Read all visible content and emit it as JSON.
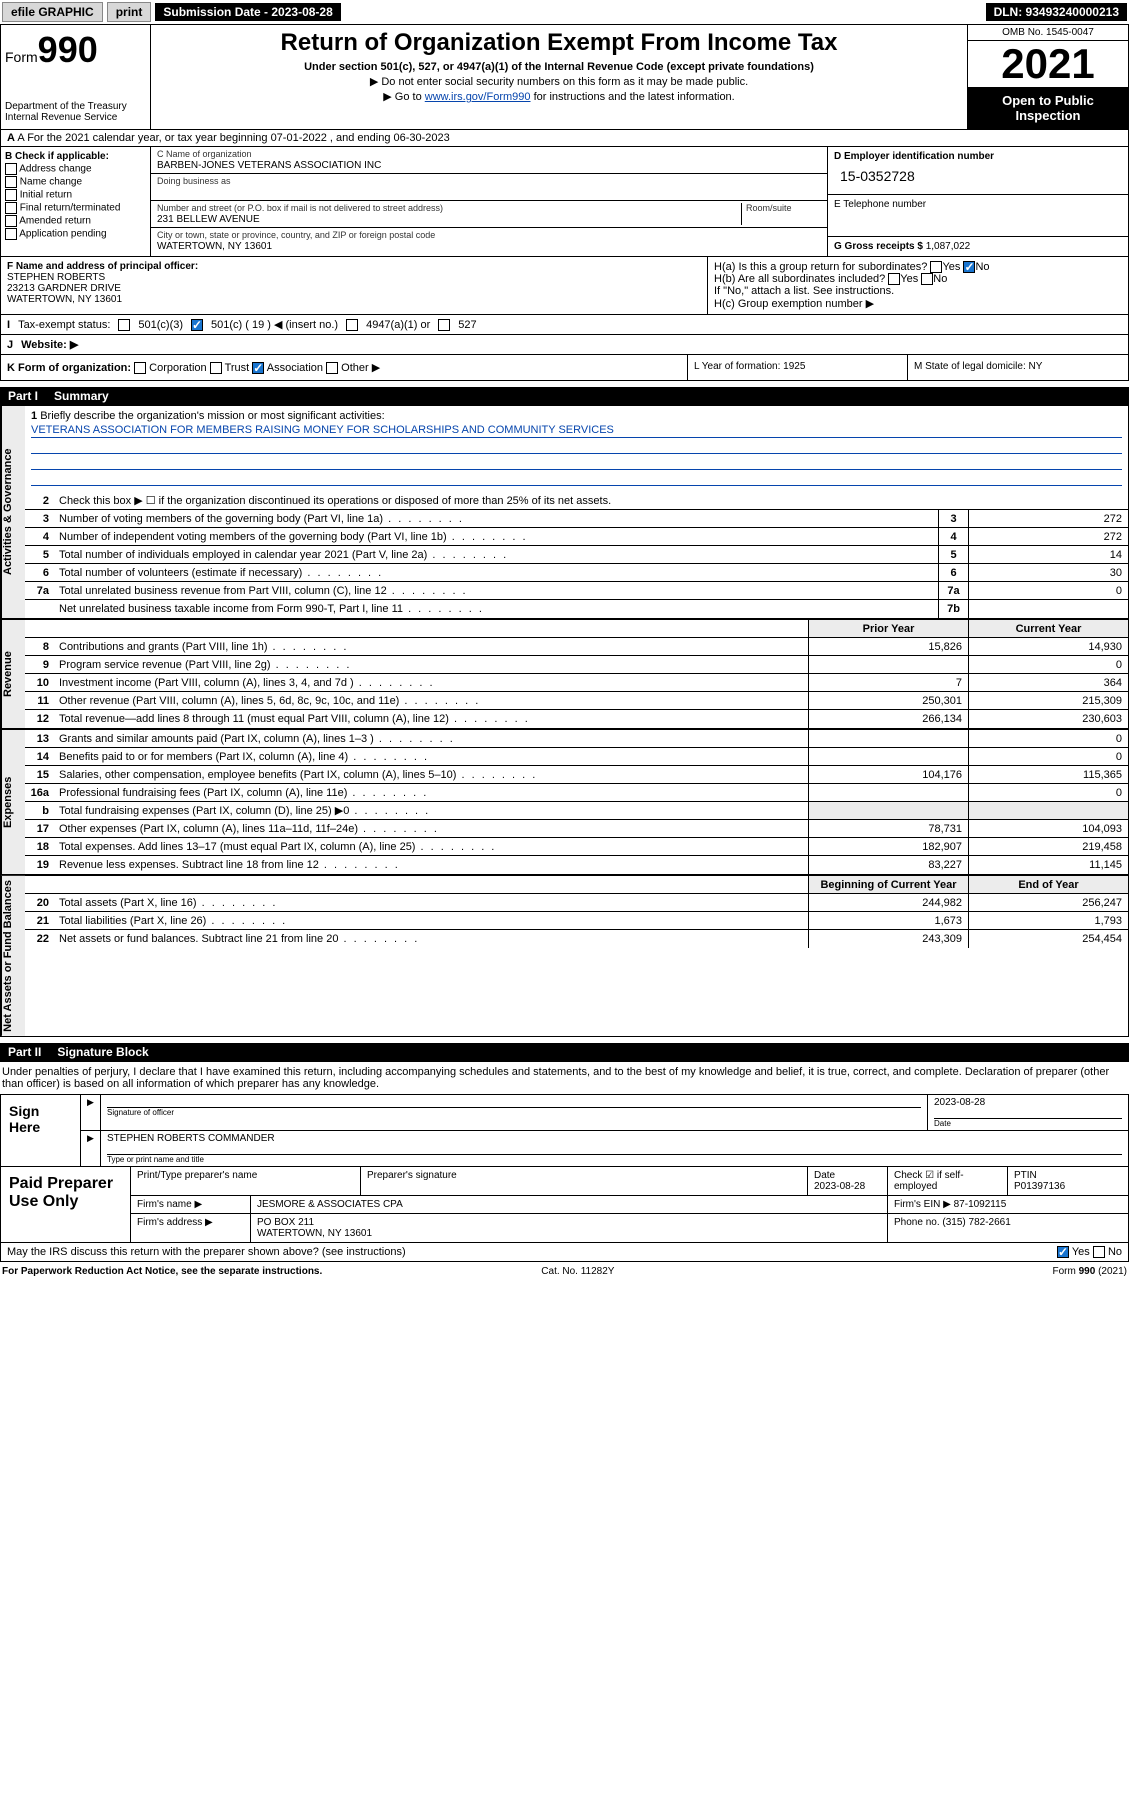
{
  "top_bar": {
    "efile": "efile GRAPHIC",
    "print": "print",
    "sub_label": "Submission Date - 2023-08-28",
    "dln": "DLN: 93493240000213"
  },
  "header": {
    "form_word": "Form",
    "form_num": "990",
    "dept": "Department of the Treasury",
    "irs": "Internal Revenue Service",
    "title": "Return of Organization Exempt From Income Tax",
    "sub": "Under section 501(c), 527, or 4947(a)(1) of the Internal Revenue Code (except private foundations)",
    "note1": "▶ Do not enter social security numbers on this form as it may be made public.",
    "note2_pre": "▶ Go to ",
    "note2_link": "www.irs.gov/Form990",
    "note2_post": " for instructions and the latest information.",
    "omb": "OMB No. 1545-0047",
    "year": "2021",
    "open": "Open to Public Inspection"
  },
  "row_a": "A For the 2021 calendar year, or tax year beginning 07-01-2022   , and ending 06-30-2023",
  "col_b": {
    "lbl": "B Check if applicable:",
    "opts": [
      "Address change",
      "Name change",
      "Initial return",
      "Final return/terminated",
      "Amended return",
      "Application pending"
    ]
  },
  "col_c": {
    "name_lbl": "C Name of organization",
    "name": "BARBEN-JONES VETERANS ASSOCIATION INC",
    "dba_lbl": "Doing business as",
    "addr_lbl": "Number and street (or P.O. box if mail is not delivered to street address)",
    "room_lbl": "Room/suite",
    "addr": "231 BELLEW AVENUE",
    "city_lbl": "City or town, state or province, country, and ZIP or foreign postal code",
    "city": "WATERTOWN, NY  13601"
  },
  "col_d": {
    "ein_lbl": "D Employer identification number",
    "ein": "15-0352728",
    "tel_lbl": "E Telephone number",
    "gross_lbl": "G Gross receipts $",
    "gross": "1,087,022"
  },
  "row_f": {
    "lbl": "F Name and address of principal officer:",
    "name": "STEPHEN ROBERTS",
    "addr1": "23213 GARDNER DRIVE",
    "addr2": "WATERTOWN, NY  13601"
  },
  "row_h": {
    "ha": "H(a)  Is this a group return for subordinates?",
    "hb": "H(b)  Are all subordinates included?",
    "hb_note": "If \"No,\" attach a list. See instructions.",
    "hc": "H(c)  Group exemption number ▶"
  },
  "row_i": {
    "lbl": "Tax-exempt status:",
    "c19": "501(c) ( 19 ) ◀ (insert no.)",
    "a1": "4947(a)(1) or",
    "c527": "527"
  },
  "row_j": "Website: ▶",
  "row_k": {
    "k": "K Form of organization:",
    "corp": "Corporation",
    "trust": "Trust",
    "assoc": "Association",
    "other": "Other ▶",
    "l": "L Year of formation: 1925",
    "m": "M State of legal domicile: NY"
  },
  "part1": {
    "pt": "Part I",
    "title": "Summary"
  },
  "mission": {
    "lbl": "Briefly describe the organization's mission or most significant activities:",
    "text": "VETERANS ASSOCIATION FOR MEMBERS RAISING MONEY FOR SCHOLARSHIPS AND COMMUNITY SERVICES"
  },
  "line2": "Check this box ▶ ☐  if the organization discontinued its operations or disposed of more than 25% of its net assets.",
  "gov_lines": [
    {
      "n": "3",
      "d": "Number of voting members of the governing body (Part VI, line 1a)",
      "box": "3",
      "v": "272"
    },
    {
      "n": "4",
      "d": "Number of independent voting members of the governing body (Part VI, line 1b)",
      "box": "4",
      "v": "272"
    },
    {
      "n": "5",
      "d": "Total number of individuals employed in calendar year 2021 (Part V, line 2a)",
      "box": "5",
      "v": "14"
    },
    {
      "n": "6",
      "d": "Total number of volunteers (estimate if necessary)",
      "box": "6",
      "v": "30"
    },
    {
      "n": "7a",
      "d": "Total unrelated business revenue from Part VIII, column (C), line 12",
      "box": "7a",
      "v": "0"
    },
    {
      "n": "",
      "d": "Net unrelated business taxable income from Form 990-T, Part I, line 11",
      "box": "7b",
      "v": ""
    }
  ],
  "col_hdrs": {
    "prior": "Prior Year",
    "current": "Current Year"
  },
  "revenue": [
    {
      "n": "8",
      "d": "Contributions and grants (Part VIII, line 1h)",
      "p": "15,826",
      "c": "14,930"
    },
    {
      "n": "9",
      "d": "Program service revenue (Part VIII, line 2g)",
      "p": "",
      "c": "0"
    },
    {
      "n": "10",
      "d": "Investment income (Part VIII, column (A), lines 3, 4, and 7d )",
      "p": "7",
      "c": "364"
    },
    {
      "n": "11",
      "d": "Other revenue (Part VIII, column (A), lines 5, 6d, 8c, 9c, 10c, and 11e)",
      "p": "250,301",
      "c": "215,309"
    },
    {
      "n": "12",
      "d": "Total revenue—add lines 8 through 11 (must equal Part VIII, column (A), line 12)",
      "p": "266,134",
      "c": "230,603"
    }
  ],
  "expenses": [
    {
      "n": "13",
      "d": "Grants and similar amounts paid (Part IX, column (A), lines 1–3 )",
      "p": "",
      "c": "0"
    },
    {
      "n": "14",
      "d": "Benefits paid to or for members (Part IX, column (A), line 4)",
      "p": "",
      "c": "0"
    },
    {
      "n": "15",
      "d": "Salaries, other compensation, employee benefits (Part IX, column (A), lines 5–10)",
      "p": "104,176",
      "c": "115,365"
    },
    {
      "n": "16a",
      "d": "Professional fundraising fees (Part IX, column (A), line 11e)",
      "p": "",
      "c": "0"
    },
    {
      "n": "b",
      "d": "Total fundraising expenses (Part IX, column (D), line 25) ▶0",
      "p": "",
      "c": "",
      "shade": true
    },
    {
      "n": "17",
      "d": "Other expenses (Part IX, column (A), lines 11a–11d, 11f–24e)",
      "p": "78,731",
      "c": "104,093"
    },
    {
      "n": "18",
      "d": "Total expenses. Add lines 13–17 (must equal Part IX, column (A), line 25)",
      "p": "182,907",
      "c": "219,458"
    },
    {
      "n": "19",
      "d": "Revenue less expenses. Subtract line 18 from line 12",
      "p": "83,227",
      "c": "11,145"
    }
  ],
  "net_hdrs": {
    "beg": "Beginning of Current Year",
    "end": "End of Year"
  },
  "net": [
    {
      "n": "20",
      "d": "Total assets (Part X, line 16)",
      "p": "244,982",
      "c": "256,247"
    },
    {
      "n": "21",
      "d": "Total liabilities (Part X, line 26)",
      "p": "1,673",
      "c": "1,793"
    },
    {
      "n": "22",
      "d": "Net assets or fund balances. Subtract line 21 from line 20",
      "p": "243,309",
      "c": "254,454"
    }
  ],
  "part2": {
    "pt": "Part II",
    "title": "Signature Block"
  },
  "sig_intro": "Under penalties of perjury, I declare that I have examined this return, including accompanying schedules and statements, and to the best of my knowledge and belief, it is true, correct, and complete. Declaration of preparer (other than officer) is based on all information of which preparer has any knowledge.",
  "sign": {
    "here": "Sign Here",
    "sig_lbl": "Signature of officer",
    "date": "2023-08-28",
    "date_lbl": "Date",
    "name": "STEPHEN ROBERTS  COMMANDER",
    "name_lbl": "Type or print name and title"
  },
  "prep": {
    "title": "Paid Preparer Use Only",
    "h1": "Print/Type preparer's name",
    "h2": "Preparer's signature",
    "h3": "Date",
    "date": "2023-08-28",
    "h4": "Check ☑ if self-employed",
    "h5": "PTIN",
    "ptin": "P01397136",
    "firm_lbl": "Firm's name    ▶",
    "firm": "JESMORE & ASSOCIATES CPA",
    "ein_lbl": "Firm's EIN ▶",
    "ein": "87-1092115",
    "addr_lbl": "Firm's address ▶",
    "addr1": "PO BOX 211",
    "addr2": "WATERTOWN, NY  13601",
    "phone_lbl": "Phone no.",
    "phone": "(315) 782-2661"
  },
  "may_irs": "May the IRS discuss this return with the preparer shown above? (see instructions)",
  "footer": {
    "left": "For Paperwork Reduction Act Notice, see the separate instructions.",
    "mid": "Cat. No. 11282Y",
    "right": "Form 990 (2021)"
  },
  "yes": "Yes",
  "no": "No",
  "side_labels": {
    "gov": "Activities & Governance",
    "rev": "Revenue",
    "exp": "Expenses",
    "net": "Net Assets or Fund Balances"
  }
}
